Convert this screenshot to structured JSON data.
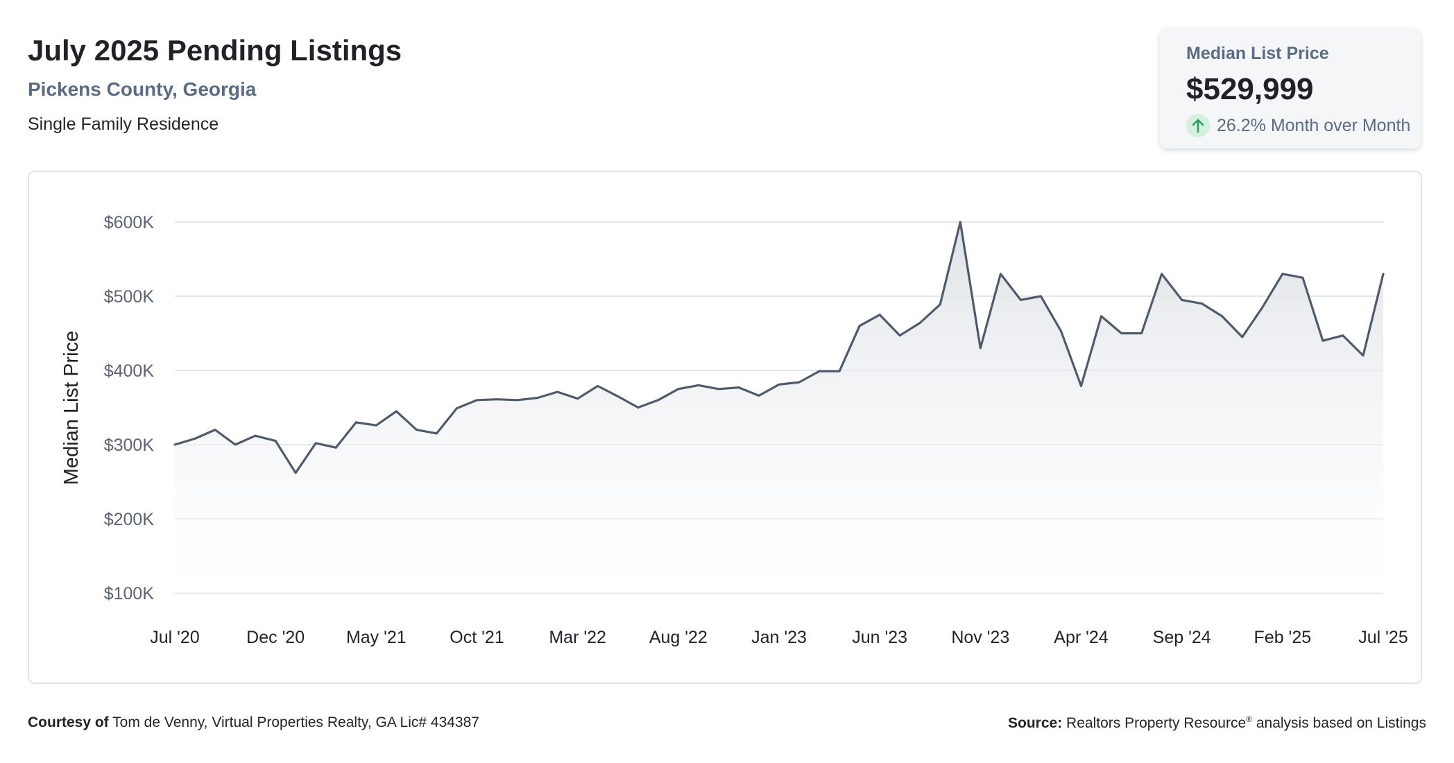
{
  "header": {
    "title": "July 2025 Pending Listings",
    "subtitle": "Pickens County, Georgia",
    "property_type": "Single Family Residence"
  },
  "stat_card": {
    "label": "Median List Price",
    "value": "$529,999",
    "change": "26.2% Month over Month",
    "direction": "up",
    "icon": "arrow-up-icon",
    "accent_color": "#2e9e5b"
  },
  "chart_data": {
    "type": "area",
    "title": "",
    "xlabel": "",
    "ylabel": "Median List Price",
    "ylim": [
      100000,
      600000
    ],
    "yticks": [
      {
        "value": 600000,
        "label": "$600K"
      },
      {
        "value": 500000,
        "label": "$500K"
      },
      {
        "value": 400000,
        "label": "$400K"
      },
      {
        "value": 300000,
        "label": "$300K"
      },
      {
        "value": 200000,
        "label": "$200K"
      },
      {
        "value": 100000,
        "label": "$100K"
      }
    ],
    "xticks": [
      {
        "index": 0,
        "label": "Jul '20"
      },
      {
        "index": 5,
        "label": "Dec '20"
      },
      {
        "index": 10,
        "label": "May '21"
      },
      {
        "index": 15,
        "label": "Oct '21"
      },
      {
        "index": 20,
        "label": "Mar '22"
      },
      {
        "index": 25,
        "label": "Aug '22"
      },
      {
        "index": 30,
        "label": "Jan '23"
      },
      {
        "index": 35,
        "label": "Jun '23"
      },
      {
        "index": 40,
        "label": "Nov '23"
      },
      {
        "index": 45,
        "label": "Apr '24"
      },
      {
        "index": 50,
        "label": "Sep '24"
      },
      {
        "index": 55,
        "label": "Feb '25"
      },
      {
        "index": 60,
        "label": "Jul '25"
      }
    ],
    "x": [
      "Jul '20",
      "Aug '20",
      "Sep '20",
      "Oct '20",
      "Nov '20",
      "Dec '20",
      "Jan '21",
      "Feb '21",
      "Mar '21",
      "Apr '21",
      "May '21",
      "Jun '21",
      "Jul '21",
      "Aug '21",
      "Sep '21",
      "Oct '21",
      "Nov '21",
      "Dec '21",
      "Jan '22",
      "Feb '22",
      "Mar '22",
      "Apr '22",
      "May '22",
      "Jun '22",
      "Jul '22",
      "Aug '22",
      "Sep '22",
      "Oct '22",
      "Nov '22",
      "Dec '22",
      "Jan '23",
      "Feb '23",
      "Mar '23",
      "Apr '23",
      "May '23",
      "Jun '23",
      "Jul '23",
      "Aug '23",
      "Sep '23",
      "Oct '23",
      "Nov '23",
      "Dec '23",
      "Jan '24",
      "Feb '24",
      "Mar '24",
      "Apr '24",
      "May '24",
      "Jun '24",
      "Jul '24",
      "Aug '24",
      "Sep '24",
      "Oct '24",
      "Nov '24",
      "Dec '24",
      "Jan '25",
      "Feb '25",
      "Mar '25",
      "Apr '25",
      "May '25",
      "Jun '25",
      "Jul '25"
    ],
    "series": [
      {
        "values": [
          300000,
          308000,
          320000,
          300000,
          312000,
          305000,
          262000,
          302000,
          296000,
          330000,
          326000,
          345000,
          320000,
          315000,
          349000,
          360000,
          361000,
          360000,
          363000,
          371000,
          362000,
          379000,
          365000,
          350000,
          360000,
          375000,
          380000,
          375000,
          377000,
          366000,
          381000,
          384000,
          399000,
          399000,
          460000,
          475000,
          447000,
          464000,
          489000,
          600000,
          430000,
          530000,
          495000,
          500000,
          453000,
          379000,
          473000,
          450000,
          450000,
          530000,
          495000,
          490000,
          473000,
          445000,
          485000,
          530000,
          525000,
          440000,
          447000,
          420000,
          530000
        ],
        "color": "#4f5b6b"
      }
    ],
    "grid": true,
    "legend": "none"
  },
  "footer": {
    "courtesy_label": "Courtesy of",
    "courtesy_text": "Tom de Venny, Virtual Properties Realty, GA Lic# 434387",
    "source_label": "Source:",
    "source_text_1": "Realtors Property Resource",
    "source_mark": "®",
    "source_text_2": " analysis based on Listings"
  }
}
